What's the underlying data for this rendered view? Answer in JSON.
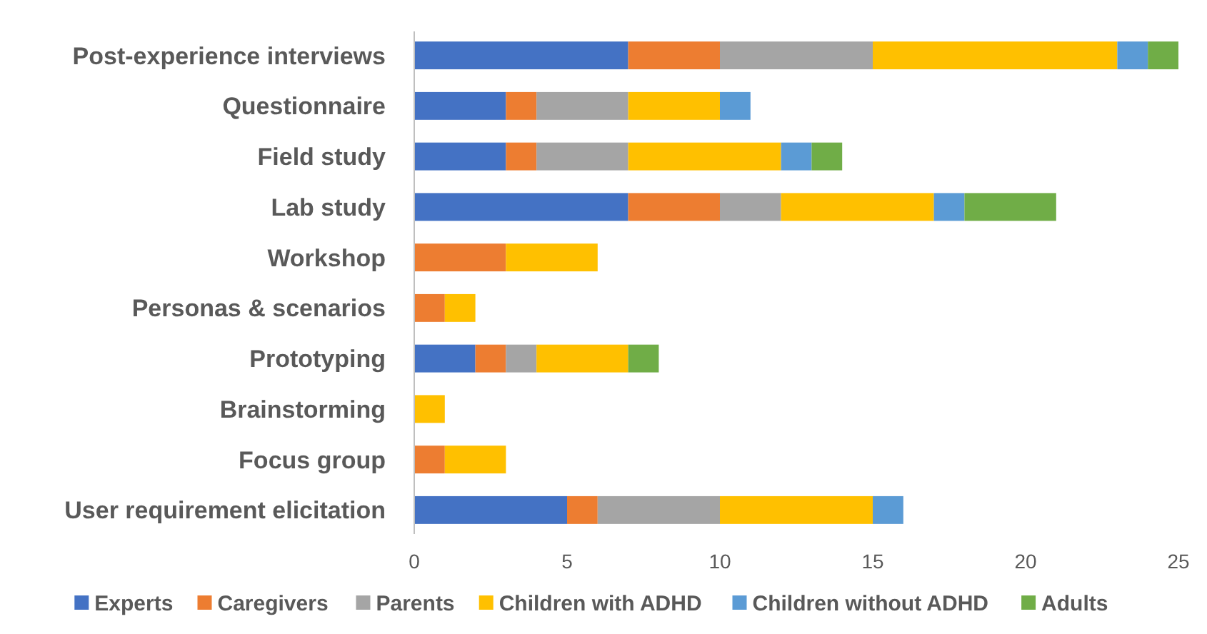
{
  "chart_data": {
    "type": "bar",
    "orientation": "horizontal",
    "stacked": true,
    "categories": [
      "Post-experience interviews",
      "Questionnaire",
      "Field study",
      "Lab study",
      "Workshop",
      "Personas & scenarios",
      "Prototyping",
      "Brainstorming",
      "Focus group",
      "User requirement elicitation"
    ],
    "series": [
      {
        "name": "Experts",
        "color": "#4472c4",
        "values": [
          7,
          3,
          3,
          7,
          0,
          0,
          2,
          0,
          0,
          5
        ]
      },
      {
        "name": "Caregivers",
        "color": "#ed7d31",
        "values": [
          3,
          1,
          1,
          3,
          3,
          1,
          1,
          0,
          1,
          1
        ]
      },
      {
        "name": "Parents",
        "color": "#a5a5a5",
        "values": [
          5,
          3,
          3,
          2,
          0,
          0,
          1,
          0,
          0,
          4
        ]
      },
      {
        "name": "Children with ADHD",
        "color": "#ffc000",
        "values": [
          8,
          3,
          5,
          5,
          3,
          1,
          3,
          1,
          2,
          5
        ]
      },
      {
        "name": "Children without ADHD",
        "color": "#5b9bd5",
        "values": [
          1,
          1,
          1,
          1,
          0,
          0,
          0,
          0,
          0,
          1
        ]
      },
      {
        "name": "Adults",
        "color": "#70ad47",
        "values": [
          1,
          0,
          1,
          3,
          0,
          0,
          1,
          0,
          0,
          0
        ]
      }
    ],
    "xlim": [
      0,
      25
    ],
    "xticks": [
      0,
      5,
      10,
      15,
      20,
      25
    ],
    "legend": "bottom"
  }
}
